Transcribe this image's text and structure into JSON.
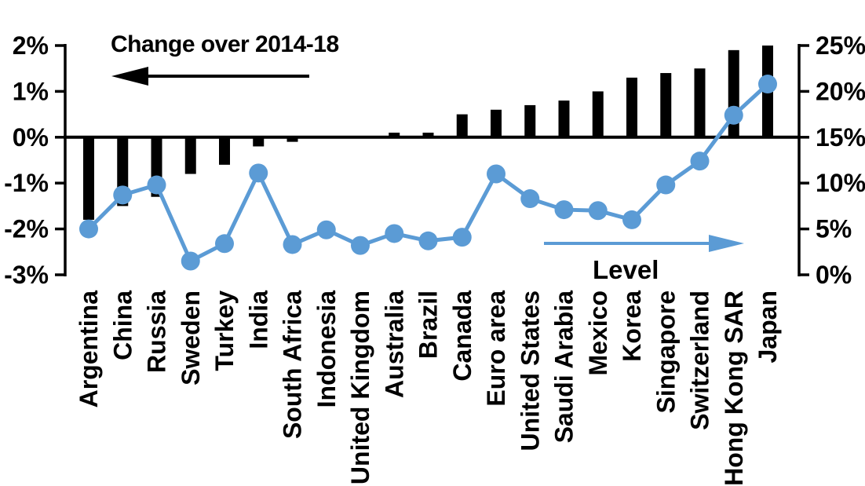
{
  "page": {
    "background": "#ffffff"
  },
  "chart_data": {
    "type": "bar",
    "subtype": "combo-bar-line-dual-axis",
    "title": "",
    "categories": [
      "Argentina",
      "China",
      "Russia",
      "Sweden",
      "Turkey",
      "India",
      "South Africa",
      "Indonesia",
      "United Kingdom",
      "Australia",
      "Brazil",
      "Canada",
      "Euro area",
      "United States",
      "Saudi Arabia",
      "Mexico",
      "Korea",
      "Singapore",
      "Switzerland",
      "Hong Kong SAR",
      "Japan"
    ],
    "series": [
      {
        "name": "Change over 2014-18",
        "type": "bar",
        "axis": "left",
        "unit": "%",
        "color": "#000000",
        "values": [
          -1.8,
          -1.5,
          -1.3,
          -0.8,
          -0.6,
          -0.2,
          -0.1,
          0,
          0,
          0.1,
          0.1,
          0.5,
          0.6,
          0.7,
          0.8,
          1.0,
          1.3,
          1.4,
          1.5,
          1.9,
          2.0
        ]
      },
      {
        "name": "Level",
        "type": "line",
        "axis": "right",
        "unit": "%",
        "color": "#5B9BD5",
        "marker": "circle",
        "values": [
          5.0,
          8.7,
          9.8,
          1.5,
          3.4,
          11.1,
          3.3,
          4.9,
          3.2,
          4.5,
          3.7,
          4.1,
          11.0,
          8.3,
          7.1,
          7.0,
          6.0,
          9.8,
          12.4,
          17.4,
          20.8
        ]
      }
    ],
    "left_axis": {
      "ticks": [
        "2%",
        "1%",
        "0%",
        "-1%",
        "-2%",
        "-3%"
      ],
      "values": [
        2,
        1,
        0,
        -1,
        -2,
        -3
      ],
      "range": [
        -3,
        2
      ]
    },
    "right_axis": {
      "ticks": [
        "25%",
        "20%",
        "15%",
        "10%",
        "5%",
        "0%"
      ],
      "values": [
        25,
        20,
        15,
        10,
        5,
        0
      ],
      "range": [
        0,
        25
      ]
    },
    "annotations": {
      "change_label": "Change over 2014-18",
      "change_arrow_direction": "left",
      "level_label": "Level",
      "level_arrow_direction": "right"
    },
    "layout_hints": {
      "grid": false,
      "zero_line": true,
      "x_labels_rotation": -90
    }
  }
}
